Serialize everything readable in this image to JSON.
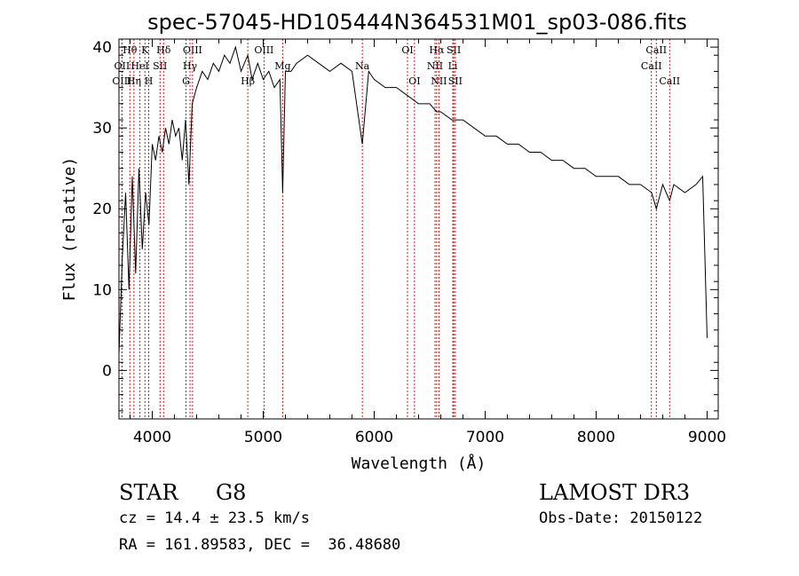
{
  "title": "spec-57045-HD105444N364531M01_sp03-086.fits",
  "info": {
    "object_class": "STAR",
    "subclass": "G8",
    "survey": "LAMOST DR3",
    "cz": "cz = 14.4 ± 23.5 km/s",
    "obs_date": "Obs-Date: 20150122",
    "coords": "RA = 161.89583, DEC =  36.48680"
  },
  "chart_data": {
    "type": "line",
    "title": "spec-57045-HD105444N364531M01_sp03-086.fits",
    "xlabel": "Wavelength (Å)",
    "ylabel": "Flux (relative)",
    "xlim": [
      3700,
      9100
    ],
    "ylim": [
      -6,
      41
    ],
    "xticks": [
      4000,
      5000,
      6000,
      7000,
      8000,
      9000
    ],
    "yticks": [
      0,
      10,
      20,
      30,
      40
    ],
    "grid": false,
    "series": [
      {
        "name": "flux",
        "x": [
          3700,
          3730,
          3760,
          3790,
          3820,
          3850,
          3880,
          3910,
          3940,
          3970,
          4000,
          4030,
          4060,
          4090,
          4120,
          4150,
          4180,
          4210,
          4240,
          4270,
          4300,
          4330,
          4360,
          4400,
          4450,
          4500,
          4550,
          4600,
          4650,
          4700,
          4750,
          4800,
          4861,
          4900,
          4950,
          5000,
          5050,
          5100,
          5150,
          5175,
          5200,
          5250,
          5300,
          5400,
          5500,
          5600,
          5700,
          5800,
          5893,
          5950,
          6000,
          6100,
          6200,
          6300,
          6400,
          6500,
          6563,
          6600,
          6700,
          6800,
          6900,
          7000,
          7100,
          7200,
          7300,
          7400,
          7500,
          7600,
          7700,
          7800,
          7900,
          8000,
          8100,
          8200,
          8300,
          8400,
          8500,
          8542,
          8600,
          8662,
          8700,
          8800,
          8900,
          8960,
          9000
        ],
        "y": [
          2,
          14,
          22,
          10,
          24,
          12,
          25,
          15,
          22,
          18,
          28,
          26,
          29,
          27,
          30,
          28,
          31,
          29,
          30,
          26,
          31,
          23,
          33,
          35,
          37,
          36,
          38,
          37,
          39,
          38,
          40,
          37,
          39,
          36,
          38,
          36,
          37,
          35,
          36,
          22,
          37,
          37,
          38,
          39,
          38,
          37,
          38,
          37,
          28,
          37,
          36,
          35,
          35,
          34,
          33,
          33,
          32,
          32,
          31,
          31,
          30,
          29,
          29,
          28,
          28,
          27,
          27,
          26,
          26,
          25,
          25,
          24,
          24,
          24,
          23,
          23,
          22,
          20,
          23,
          21,
          23,
          22,
          23,
          24,
          4
        ]
      }
    ],
    "line_markers": [
      {
        "label": "Hθ",
        "x": 3798,
        "row": 0
      },
      {
        "label": "K",
        "x": 3934,
        "row": 0
      },
      {
        "label": "Hδ",
        "x": 4102,
        "row": 0
      },
      {
        "label": "OIII",
        "x": 4363,
        "row": 0
      },
      {
        "label": "OIII",
        "x": 5007,
        "row": 0
      },
      {
        "label": "OI",
        "x": 6300,
        "row": 0
      },
      {
        "label": "Hα",
        "x": 6563,
        "row": 0
      },
      {
        "label": "SII",
        "x": 6717,
        "row": 0
      },
      {
        "label": "CaII",
        "x": 8542,
        "row": 0
      },
      {
        "label": "OII",
        "x": 3727,
        "row": 1
      },
      {
        "label": "HeI",
        "x": 3889,
        "row": 1
      },
      {
        "label": "SII",
        "x": 4070,
        "row": 1
      },
      {
        "label": "Hγ",
        "x": 4340,
        "row": 1
      },
      {
        "label": "Mg",
        "x": 5175,
        "row": 1
      },
      {
        "label": "Na",
        "x": 5893,
        "row": 1
      },
      {
        "label": "NII",
        "x": 6548,
        "row": 1
      },
      {
        "label": "Li",
        "x": 6708,
        "row": 1
      },
      {
        "label": "CaII",
        "x": 8498,
        "row": 1
      },
      {
        "label": "OIII",
        "x": 3727,
        "row": 2
      },
      {
        "label": "Hη",
        "x": 3835,
        "row": 2
      },
      {
        "label": "H",
        "x": 3968,
        "row": 2
      },
      {
        "label": "G",
        "x": 4304,
        "row": 2
      },
      {
        "label": "Hβ",
        "x": 4861,
        "row": 2
      },
      {
        "label": "OI",
        "x": 6363,
        "row": 2
      },
      {
        "label": "NII",
        "x": 6583,
        "row": 2
      },
      {
        "label": "SII",
        "x": 6731,
        "row": 2
      },
      {
        "label": "CaII",
        "x": 8662,
        "row": 2
      }
    ],
    "line_color": "#cc0000"
  }
}
